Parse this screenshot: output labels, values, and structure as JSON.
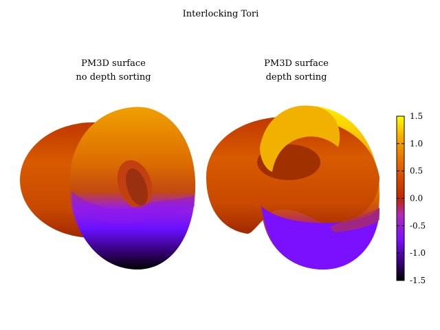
{
  "chart_data": {
    "type": "surface",
    "title": "Interlocking Tori",
    "panels": [
      {
        "title_lines": [
          "PM3D surface",
          "no depth sorting"
        ],
        "depth_sorting": false
      },
      {
        "title_lines": [
          "PM3D surface",
          "depth sorting"
        ],
        "depth_sorting": true
      }
    ],
    "colorbar": {
      "range": [
        -1.5,
        1.5
      ],
      "ticks": [
        1.5,
        1.0,
        0.5,
        0.0,
        -0.5,
        -1.0,
        -1.5
      ],
      "tick_labels": [
        "1.5",
        "1.0",
        "0.5",
        "0.0",
        "-0.5",
        "-1.0",
        "-1.5"
      ],
      "palette": [
        "#000000",
        "#3b0080",
        "#7a10ff",
        "#b02ab4",
        "#c02800",
        "#e06a00",
        "#f5a200",
        "#ffd000",
        "#ffff00"
      ]
    },
    "grid": false,
    "legend": "none"
  }
}
